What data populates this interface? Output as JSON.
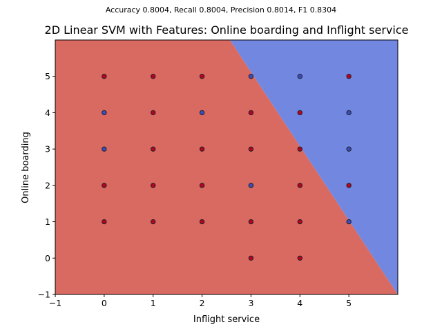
{
  "suptitle": "Accuracy 0.8004, Recall 0.8004, Precision 0.8014, F1 0.8304",
  "chart_data": {
    "type": "scatter",
    "title": "2D Linear SVM with Features: Online boarding and Inflight service",
    "xlabel": "Inflight service",
    "ylabel": "Online boarding",
    "xlim": [
      -1,
      6
    ],
    "ylim": [
      -1,
      6
    ],
    "xticks": [
      -1,
      0,
      1,
      2,
      3,
      4,
      5
    ],
    "yticks": [
      -1,
      0,
      1,
      2,
      3,
      4,
      5
    ],
    "grid": false,
    "colors": {
      "region_red": "#d96a62",
      "region_blue": "#7287e0",
      "point_red": "#b40426",
      "point_blue": "#3b4cc0",
      "edge": "#222222"
    },
    "decision_boundary": {
      "x_at_y_max": 2.57,
      "x_at_y_min": 6.0
    },
    "series": [
      {
        "class": "red",
        "points": [
          [
            0,
            5
          ],
          [
            1,
            5
          ],
          [
            2,
            5
          ],
          [
            5,
            5
          ],
          [
            1,
            4
          ],
          [
            3,
            4
          ],
          [
            4,
            4
          ],
          [
            1,
            3
          ],
          [
            2,
            3
          ],
          [
            3,
            3
          ],
          [
            4,
            3
          ],
          [
            0,
            2
          ],
          [
            1,
            2
          ],
          [
            2,
            2
          ],
          [
            4,
            2
          ],
          [
            5,
            2
          ],
          [
            0,
            1
          ],
          [
            1,
            1
          ],
          [
            2,
            1
          ],
          [
            3,
            1
          ],
          [
            4,
            1
          ],
          [
            3,
            0
          ],
          [
            4,
            0
          ]
        ]
      },
      {
        "class": "blue",
        "points": [
          [
            3,
            5
          ],
          [
            4,
            5
          ],
          [
            0,
            4
          ],
          [
            2,
            4
          ],
          [
            5,
            4
          ],
          [
            0,
            3
          ],
          [
            5,
            3
          ],
          [
            3,
            2
          ],
          [
            5,
            1
          ]
        ]
      }
    ]
  }
}
